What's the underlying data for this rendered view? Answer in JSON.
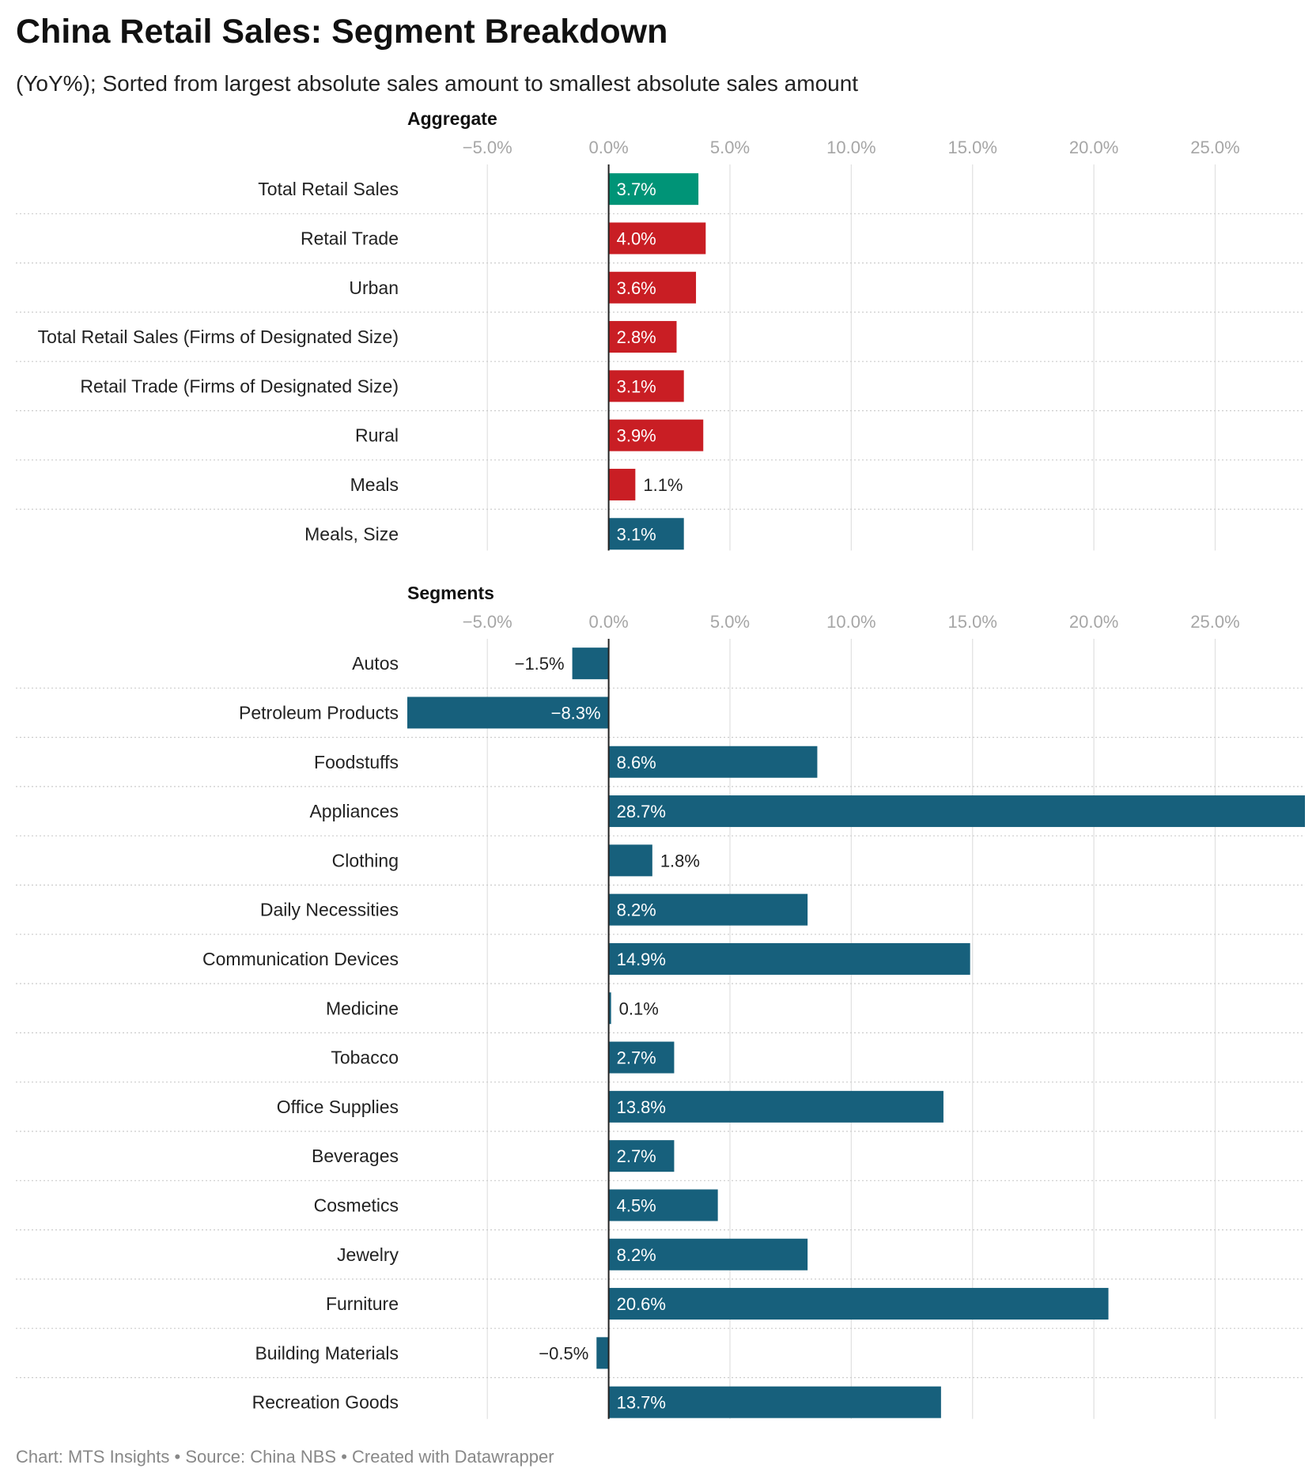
{
  "title": "China Retail Sales: Segment Breakdown",
  "subtitle": "(YoY%); Sorted from largest absolute sales amount to smallest absolute sales amount",
  "footer": "Chart: MTS Insights • Source: China NBS • Created with Datawrapper",
  "colors": {
    "total": "#009477",
    "aggregate": "#c91e24",
    "segment": "#17607c",
    "tick": "#a6a6a6",
    "grid": "#e0e0e0",
    "row_line": "#cccccc",
    "label_inside": "#ffffff",
    "label_outside": "#222222",
    "category": "#222222",
    "zero_line": "#222222"
  },
  "chart_data": [
    {
      "type": "bar",
      "orientation": "horizontal",
      "title": "Aggregate",
      "unit": "%",
      "xlim": [
        -8.3,
        28.7
      ],
      "ticks": [
        -5,
        0,
        5,
        10,
        15,
        20,
        25
      ],
      "tick_labels": [
        "−5.0%",
        "0.0%",
        "5.0%",
        "10.0%",
        "15.0%",
        "20.0%",
        "25.0%"
      ],
      "categories": [
        "Total Retail Sales",
        "Retail Trade",
        "Urban",
        "Total Retail Sales (Firms of Designated Size)",
        "Retail Trade (Firms of Designated Size)",
        "Rural",
        "Meals",
        "Meals, Size"
      ],
      "values": [
        3.7,
        4.0,
        3.6,
        2.8,
        3.1,
        3.9,
        1.1,
        3.1
      ],
      "value_labels": [
        "3.7%",
        "4.0%",
        "3.6%",
        "2.8%",
        "3.1%",
        "3.9%",
        "1.1%",
        "3.1%"
      ],
      "bar_colors": [
        "total",
        "aggregate",
        "aggregate",
        "aggregate",
        "aggregate",
        "aggregate",
        "aggregate",
        "segment"
      ]
    },
    {
      "type": "bar",
      "orientation": "horizontal",
      "title": "Segments",
      "unit": "%",
      "xlim": [
        -8.3,
        28.7
      ],
      "ticks": [
        -5,
        0,
        5,
        10,
        15,
        20,
        25
      ],
      "tick_labels": [
        "−5.0%",
        "0.0%",
        "5.0%",
        "10.0%",
        "15.0%",
        "20.0%",
        "25.0%"
      ],
      "categories": [
        "Autos",
        "Petroleum Products",
        "Foodstuffs",
        "Appliances",
        "Clothing",
        "Daily Necessities",
        "Communication Devices",
        "Medicine",
        "Tobacco",
        "Office Supplies",
        "Beverages",
        "Cosmetics",
        "Jewelry",
        "Furniture",
        "Building Materials",
        "Recreation Goods"
      ],
      "values": [
        -1.5,
        -8.3,
        8.6,
        28.7,
        1.8,
        8.2,
        14.9,
        0.1,
        2.7,
        13.8,
        2.7,
        4.5,
        8.2,
        20.6,
        -0.5,
        13.7
      ],
      "value_labels": [
        "−1.5%",
        "−8.3%",
        "8.6%",
        "28.7%",
        "1.8%",
        "8.2%",
        "14.9%",
        "0.1%",
        "2.7%",
        "13.8%",
        "2.7%",
        "4.5%",
        "8.2%",
        "20.6%",
        "−0.5%",
        "13.7%"
      ],
      "bar_colors": [
        "segment",
        "segment",
        "segment",
        "segment",
        "segment",
        "segment",
        "segment",
        "segment",
        "segment",
        "segment",
        "segment",
        "segment",
        "segment",
        "segment",
        "segment",
        "segment"
      ]
    }
  ]
}
